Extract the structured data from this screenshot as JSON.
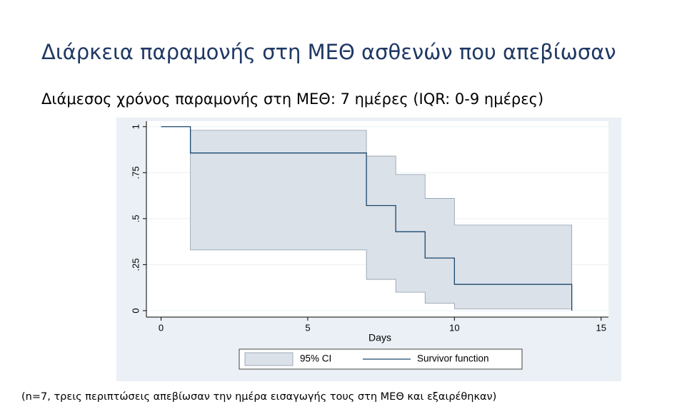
{
  "header": {
    "title": "Διάρκεια παραμονής στη ΜΕΘ ασθενών που απεβίωσαν",
    "subtitle": "Διάμεσος χρόνος παραμονής στη ΜΕΘ: 7 ημέρες (IQR: 0-9 ημέρες)"
  },
  "chart_data": {
    "type": "line",
    "step": true,
    "grid": true,
    "legend": "bottom",
    "x_label": "Days",
    "xlim": [
      -0.5,
      15.25
    ],
    "xticks": [
      0,
      5,
      10,
      15
    ],
    "ylim": [
      -0.035,
      1.03
    ],
    "yticks": [
      0,
      {
        "value": 0.25,
        "label": ".25"
      },
      {
        "value": 0.5,
        "label": ".5"
      },
      {
        "value": 0.75,
        "label": ".75"
      },
      1
    ],
    "series": [
      {
        "name": "95% CI",
        "kind": "band",
        "color": "#dbe1e8",
        "x": [
          1,
          7,
          8,
          9,
          10,
          14
        ],
        "upper": [
          0.98,
          0.84,
          0.74,
          0.61,
          0.465,
          0.465
        ],
        "lower": [
          0.33,
          0.17,
          0.1,
          0.04,
          0.01,
          0.01
        ]
      },
      {
        "name": "Survivor function",
        "kind": "line",
        "color": "#1a476f",
        "x": [
          0,
          1,
          7,
          8,
          9,
          10,
          14
        ],
        "values": [
          1,
          0.857,
          0.571,
          0.429,
          0.286,
          0.143,
          0
        ]
      }
    ]
  },
  "footnote": "(n=7, τρεις περιπτώσεις απεβίωσαν την ημέρα εισαγωγής τους στη ΜΕΘ και εξαιρέθηκαν)"
}
